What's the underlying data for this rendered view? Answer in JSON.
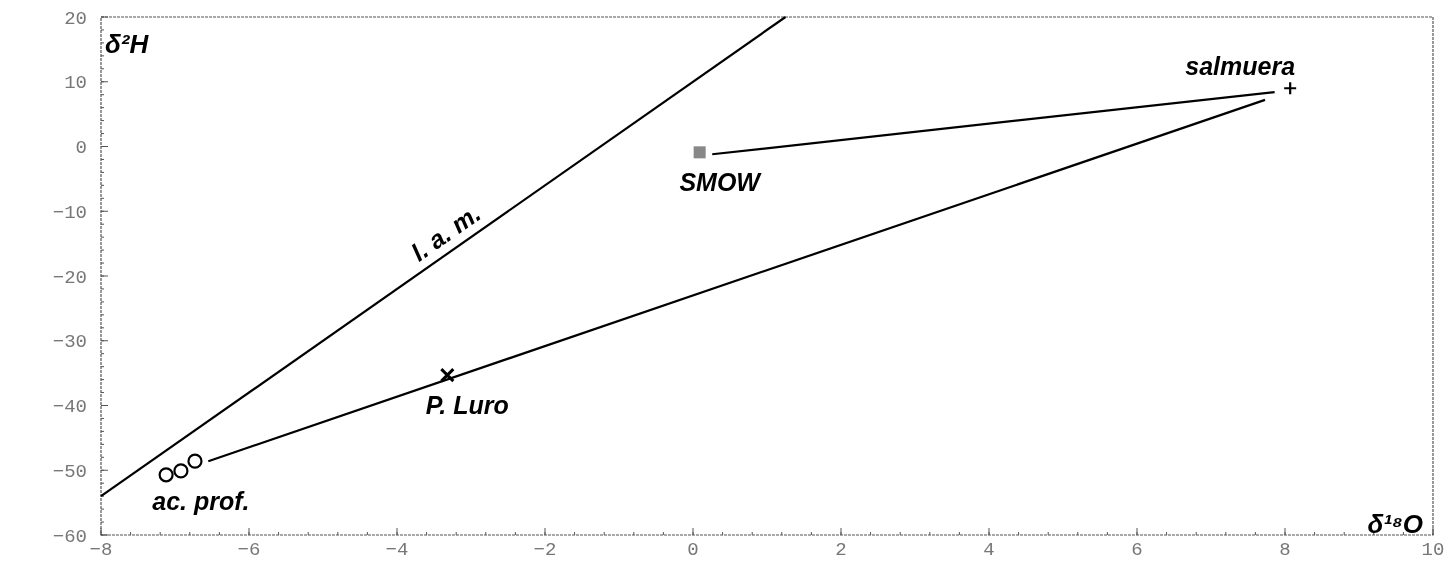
{
  "chart_data": {
    "type": "scatter",
    "xlabel": "δ¹⁸O",
    "ylabel": "δ²H",
    "xlim": [
      -8,
      10
    ],
    "xticks": [
      -8,
      -6,
      -4,
      -2,
      0,
      2,
      4,
      6,
      8,
      10
    ],
    "ylim": [
      -60,
      20
    ],
    "yticks": [
      -60,
      -50,
      -40,
      -30,
      -20,
      -10,
      0,
      10,
      20
    ],
    "grid": false,
    "series": [
      {
        "type": "line",
        "color": "#000000",
        "x": [
          -8,
          1.25
        ],
        "values": [
          -54,
          20
        ]
      },
      {
        "type": "line",
        "color": "#000000",
        "x": [
          -6.55,
          7.73
        ],
        "values": [
          -48.6,
          7.2
        ]
      },
      {
        "type": "line",
        "color": "#000000",
        "x": [
          0.26,
          7.86
        ],
        "values": [
          -1.2,
          8.4
        ]
      },
      {
        "color": "#000000",
        "x": [
          -7.12,
          -6.92,
          -6.73
        ],
        "values": [
          -50.7,
          -50.1,
          -48.6
        ],
        "marker": "circle"
      },
      {
        "color": "#000000",
        "x": [
          -3.32
        ],
        "values": [
          -35.3
        ],
        "marker": "cross"
      },
      {
        "color": "#888888",
        "x": [
          0.09
        ],
        "values": [
          -0.9
        ],
        "marker": "square"
      },
      {
        "color": "#000000",
        "x": [
          8.07
        ],
        "values": [
          9.0
        ],
        "marker": "plus"
      }
    ],
    "annotations": [
      {
        "text": "l. a. m.",
        "x": -3.2,
        "y": -15.6
      },
      {
        "text": "SMOW",
        "x": 0.09,
        "y": -0.9
      },
      {
        "text": "salmuera",
        "x": 8.07,
        "y": 9.0
      },
      {
        "text": "P. Luro",
        "x": -3.32,
        "y": -35.3
      },
      {
        "text": "ac. prof.",
        "x": -6.92,
        "y": -50.1
      }
    ]
  }
}
